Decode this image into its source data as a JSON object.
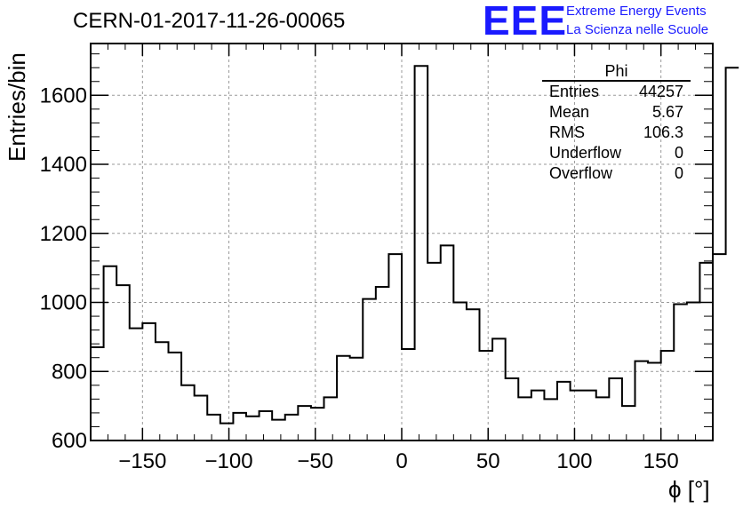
{
  "header": {
    "title": "CERN-01-2017-11-26-00065",
    "logo_text": "EEE",
    "logo_line1": "Extreme Energy Events",
    "logo_line2": "La Scienza nelle Scuole",
    "accent_color": "#1a1aff"
  },
  "stats": {
    "title": "Phi",
    "rows": [
      {
        "label": "Entries",
        "value": "44257"
      },
      {
        "label": "Mean",
        "value": "5.67"
      },
      {
        "label": "RMS",
        "value": "106.3"
      },
      {
        "label": "Underflow",
        "value": "0"
      },
      {
        "label": "Overflow",
        "value": "0"
      }
    ]
  },
  "chart_data": {
    "type": "histogram",
    "title": "CERN-01-2017-11-26-00065",
    "xlabel": "ϕ [°]",
    "ylabel": "Entries/bin",
    "xlim": [
      -180,
      180
    ],
    "ylim": [
      600,
      1750
    ],
    "xticks": [
      -150,
      -100,
      -50,
      0,
      50,
      100,
      150
    ],
    "yticks": [
      600,
      800,
      1000,
      1200,
      1400,
      1600
    ],
    "grid": true,
    "bin_width": 7.5,
    "bin_edges_start": -180,
    "values": [
      870,
      1105,
      1050,
      925,
      940,
      885,
      855,
      760,
      730,
      675,
      650,
      680,
      670,
      685,
      660,
      675,
      700,
      695,
      725,
      845,
      840,
      1010,
      1045,
      1140,
      865,
      1685,
      1115,
      1165,
      1000,
      980,
      860,
      895,
      780,
      725,
      745,
      720,
      770,
      745,
      745,
      725,
      780,
      700,
      830,
      825,
      860,
      995,
      1000,
      1115,
      1140,
      1680
    ]
  }
}
